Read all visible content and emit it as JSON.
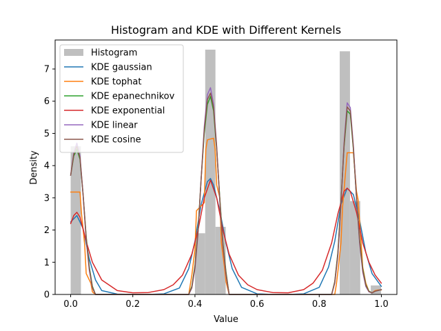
{
  "chart_data": {
    "type": "line",
    "title": "Histogram and KDE with Different Kernels",
    "xlabel": "Value",
    "ylabel": "Density",
    "xlim": [
      -0.05,
      1.05
    ],
    "ylim": [
      0,
      7.9
    ],
    "x_ticks": [
      0.0,
      0.2,
      0.4,
      0.6,
      0.8,
      1.0
    ],
    "x_tick_labels": [
      "0.0",
      "0.2",
      "0.4",
      "0.6",
      "0.8",
      "1.0"
    ],
    "y_ticks": [
      0,
      1,
      2,
      3,
      4,
      5,
      6,
      7
    ],
    "y_tick_labels": [
      "0",
      "1",
      "2",
      "3",
      "4",
      "5",
      "6",
      "7"
    ],
    "grid": false,
    "legend_position": "upper-left",
    "histogram": {
      "name": "Histogram",
      "color": "#bfbfbf",
      "bin_width": 0.033,
      "bins": [
        {
          "x0": 0.0,
          "value": 4.6
        },
        {
          "x0": 0.4,
          "value": 1.9
        },
        {
          "x0": 0.433,
          "value": 7.6
        },
        {
          "x0": 0.466,
          "value": 2.1
        },
        {
          "x0": 0.866,
          "value": 7.55
        },
        {
          "x0": 0.899,
          "value": 2.9
        },
        {
          "x0": 0.966,
          "value": 0.28
        }
      ]
    },
    "series": [
      {
        "name": "KDE gaussian",
        "color": "#1f77b4",
        "x": [
          0.0,
          0.02,
          0.04,
          0.06,
          0.08,
          0.1,
          0.15,
          0.2,
          0.25,
          0.3,
          0.35,
          0.38,
          0.4,
          0.42,
          0.44,
          0.45,
          0.46,
          0.48,
          0.5,
          0.52,
          0.55,
          0.6,
          0.65,
          0.7,
          0.75,
          0.8,
          0.83,
          0.85,
          0.87,
          0.89,
          0.91,
          0.93,
          0.95,
          0.97,
          1.0
        ],
        "y": [
          2.25,
          2.45,
          2.05,
          1.1,
          0.45,
          0.12,
          0.01,
          0.0,
          0.0,
          0.02,
          0.2,
          0.8,
          1.65,
          2.8,
          3.5,
          3.6,
          3.4,
          2.6,
          1.6,
          0.8,
          0.22,
          0.02,
          0.0,
          0.0,
          0.02,
          0.22,
          0.85,
          1.65,
          2.8,
          3.3,
          3.1,
          2.3,
          1.3,
          0.65,
          0.25
        ]
      },
      {
        "name": "KDE tophat",
        "color": "#ff7f0e",
        "x": [
          0.0,
          0.03,
          0.035,
          0.045,
          0.05,
          0.065,
          0.07,
          0.08,
          0.38,
          0.385,
          0.39,
          0.4,
          0.405,
          0.43,
          0.435,
          0.44,
          0.46,
          0.465,
          0.47,
          0.48,
          0.485,
          0.495,
          0.5,
          0.51,
          0.85,
          0.855,
          0.86,
          0.87,
          0.875,
          0.89,
          0.91,
          0.92,
          0.925,
          0.935,
          0.94,
          0.95,
          0.96,
          0.97,
          0.98,
          0.99,
          1.0
        ],
        "y": [
          3.18,
          3.18,
          2.5,
          1.55,
          0.65,
          0.35,
          0.08,
          0.0,
          0.0,
          0.3,
          0.6,
          1.4,
          2.6,
          2.85,
          4.5,
          4.8,
          4.85,
          4.5,
          3.4,
          3.0,
          1.6,
          0.85,
          0.4,
          0.0,
          0.0,
          0.3,
          0.7,
          1.6,
          2.7,
          4.4,
          4.4,
          3.2,
          2.95,
          1.6,
          0.85,
          0.35,
          0.1,
          0.05,
          0.12,
          0.14,
          0.14
        ]
      },
      {
        "name": "KDE epanechnikov",
        "color": "#2ca02c",
        "x": [
          0.0,
          0.01,
          0.02,
          0.03,
          0.04,
          0.05,
          0.06,
          0.07,
          0.08,
          0.38,
          0.39,
          0.4,
          0.41,
          0.42,
          0.43,
          0.44,
          0.45,
          0.46,
          0.47,
          0.48,
          0.49,
          0.5,
          0.51,
          0.84,
          0.85,
          0.86,
          0.87,
          0.88,
          0.89,
          0.9,
          0.91,
          0.92,
          0.93,
          0.94,
          0.95,
          0.96,
          0.97,
          0.98,
          1.0
        ],
        "y": [
          3.7,
          4.3,
          4.5,
          4.2,
          3.1,
          1.8,
          0.85,
          0.25,
          0.0,
          0.0,
          0.25,
          0.9,
          2.0,
          3.6,
          5.0,
          5.9,
          6.15,
          5.7,
          4.5,
          3.0,
          1.6,
          0.7,
          0.0,
          0.0,
          0.4,
          1.3,
          2.9,
          4.6,
          5.7,
          5.6,
          4.5,
          3.0,
          1.7,
          0.8,
          0.3,
          0.1,
          0.05,
          0.1,
          0.15
        ]
      },
      {
        "name": "KDE exponential",
        "color": "#d62728",
        "x": [
          0.0,
          0.01,
          0.02,
          0.03,
          0.05,
          0.07,
          0.1,
          0.15,
          0.2,
          0.25,
          0.3,
          0.33,
          0.36,
          0.39,
          0.41,
          0.43,
          0.45,
          0.47,
          0.49,
          0.51,
          0.54,
          0.57,
          0.6,
          0.65,
          0.7,
          0.75,
          0.78,
          0.81,
          0.84,
          0.86,
          0.88,
          0.89,
          0.9,
          0.92,
          0.94,
          0.96,
          0.98,
          1.0
        ],
        "y": [
          2.2,
          2.45,
          2.55,
          2.4,
          1.65,
          1.0,
          0.45,
          0.12,
          0.05,
          0.06,
          0.15,
          0.3,
          0.6,
          1.25,
          2.0,
          3.0,
          3.55,
          3.0,
          2.0,
          1.25,
          0.6,
          0.3,
          0.15,
          0.06,
          0.05,
          0.15,
          0.35,
          0.75,
          1.6,
          2.5,
          3.2,
          3.3,
          3.2,
          2.55,
          1.6,
          1.0,
          0.6,
          0.35
        ]
      },
      {
        "name": "KDE linear",
        "color": "#9467bd",
        "x": [
          0.0,
          0.01,
          0.02,
          0.03,
          0.04,
          0.05,
          0.06,
          0.07,
          0.08,
          0.38,
          0.39,
          0.4,
          0.41,
          0.42,
          0.43,
          0.44,
          0.45,
          0.46,
          0.47,
          0.48,
          0.49,
          0.5,
          0.51,
          0.84,
          0.85,
          0.86,
          0.87,
          0.88,
          0.89,
          0.9,
          0.91,
          0.92,
          0.93,
          0.94,
          0.95,
          0.96,
          0.97,
          0.98,
          1.0
        ],
        "y": [
          3.7,
          4.4,
          4.7,
          4.3,
          3.1,
          1.7,
          0.75,
          0.2,
          0.0,
          0.0,
          0.2,
          0.8,
          1.9,
          3.6,
          5.2,
          6.2,
          6.42,
          5.9,
          4.6,
          2.9,
          1.5,
          0.6,
          0.0,
          0.0,
          0.35,
          1.2,
          2.8,
          4.7,
          5.95,
          5.8,
          4.6,
          3.0,
          1.6,
          0.7,
          0.25,
          0.08,
          0.05,
          0.1,
          0.15
        ]
      },
      {
        "name": "KDE cosine",
        "color": "#8c564b",
        "x": [
          0.0,
          0.01,
          0.02,
          0.03,
          0.04,
          0.05,
          0.06,
          0.07,
          0.08,
          0.38,
          0.39,
          0.4,
          0.41,
          0.42,
          0.43,
          0.44,
          0.45,
          0.46,
          0.47,
          0.48,
          0.49,
          0.5,
          0.51,
          0.84,
          0.85,
          0.86,
          0.87,
          0.88,
          0.89,
          0.9,
          0.91,
          0.92,
          0.93,
          0.94,
          0.95,
          0.96,
          0.97,
          0.98,
          1.0
        ],
        "y": [
          3.7,
          4.35,
          4.6,
          4.25,
          3.1,
          1.75,
          0.8,
          0.22,
          0.0,
          0.0,
          0.22,
          0.85,
          1.95,
          3.6,
          5.1,
          6.05,
          6.25,
          5.8,
          4.55,
          2.95,
          1.55,
          0.65,
          0.0,
          0.0,
          0.38,
          1.25,
          2.85,
          4.65,
          5.82,
          5.7,
          4.55,
          3.0,
          1.65,
          0.75,
          0.28,
          0.09,
          0.05,
          0.1,
          0.15
        ]
      }
    ]
  }
}
